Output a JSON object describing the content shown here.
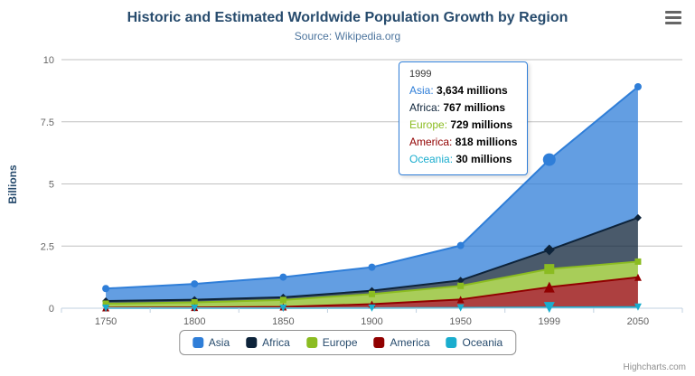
{
  "chart": {
    "title": "Historic and Estimated Worldwide Population Growth by Region",
    "subtitle": "Source: Wikipedia.org",
    "y_axis_title": "Billions",
    "credits": "Highcharts.com"
  },
  "tooltip": {
    "header": "1999",
    "value_suffix": " millions"
  },
  "chart_data": {
    "type": "area",
    "stacked": true,
    "title": "Historic and Estimated Worldwide Population Growth by Region",
    "subtitle": "Source: Wikipedia.org",
    "xlabel": "",
    "ylabel": "Billions",
    "unit": "millions",
    "ylim": [
      0,
      10
    ],
    "yticks": [
      0,
      2.5,
      5,
      7.5,
      10
    ],
    "grid": true,
    "legend_position": "bottom",
    "categories": [
      "1750",
      "1800",
      "1850",
      "1900",
      "1950",
      "1999",
      "2050"
    ],
    "stack_order_bottom_to_top": [
      "Oceania",
      "America",
      "Europe",
      "Africa",
      "Asia"
    ],
    "hover_index": 5,
    "series": [
      {
        "name": "Asia",
        "color": "#2f7ed8",
        "marker": "circle",
        "values": [
          502,
          635,
          809,
          947,
          1402,
          3634,
          5268
        ]
      },
      {
        "name": "Africa",
        "color": "#0d233a",
        "marker": "diamond",
        "values": [
          106,
          107,
          111,
          133,
          221,
          767,
          1766
        ]
      },
      {
        "name": "Europe",
        "color": "#8bbc21",
        "marker": "square",
        "values": [
          163,
          203,
          276,
          408,
          547,
          729,
          628
        ]
      },
      {
        "name": "America",
        "color": "#910000",
        "marker": "triangle",
        "values": [
          18,
          31,
          54,
          156,
          339,
          818,
          1201
        ]
      },
      {
        "name": "Oceania",
        "color": "#1aadce",
        "marker": "triangle-down",
        "values": [
          2,
          2,
          2,
          6,
          13,
          30,
          46
        ]
      }
    ]
  }
}
